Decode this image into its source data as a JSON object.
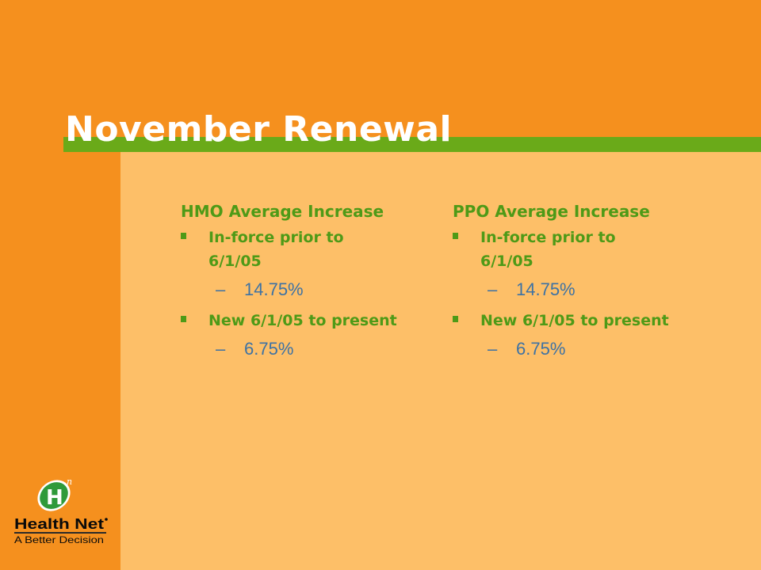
{
  "slide": {
    "title": "November Renewal"
  },
  "columns": [
    {
      "heading": "HMO Average Increase",
      "groups": [
        {
          "bullet": "In-force prior to 6/1/05",
          "dash": "–",
          "value": "14.75%"
        },
        {
          "bullet": "New 6/1/05 to present",
          "dash": "–",
          "value": "6.75%"
        }
      ]
    },
    {
      "heading": "PPO Average Increase",
      "groups": [
        {
          "bullet": "In-force prior to 6/1/05",
          "dash": "–",
          "value": "14.75%"
        },
        {
          "bullet": "New 6/1/05 to present",
          "dash": "–",
          "value": "6.75%"
        }
      ]
    }
  ],
  "logo": {
    "monogram": "H",
    "superscript": "n",
    "brand": "Health Net",
    "tagline": "A Better Decision"
  },
  "colors": {
    "background": "#f5901e",
    "panel": "#fdbf68",
    "accent_bar": "#6aaa19",
    "text_green": "#4e9a17",
    "text_blue": "#3d72a4"
  }
}
